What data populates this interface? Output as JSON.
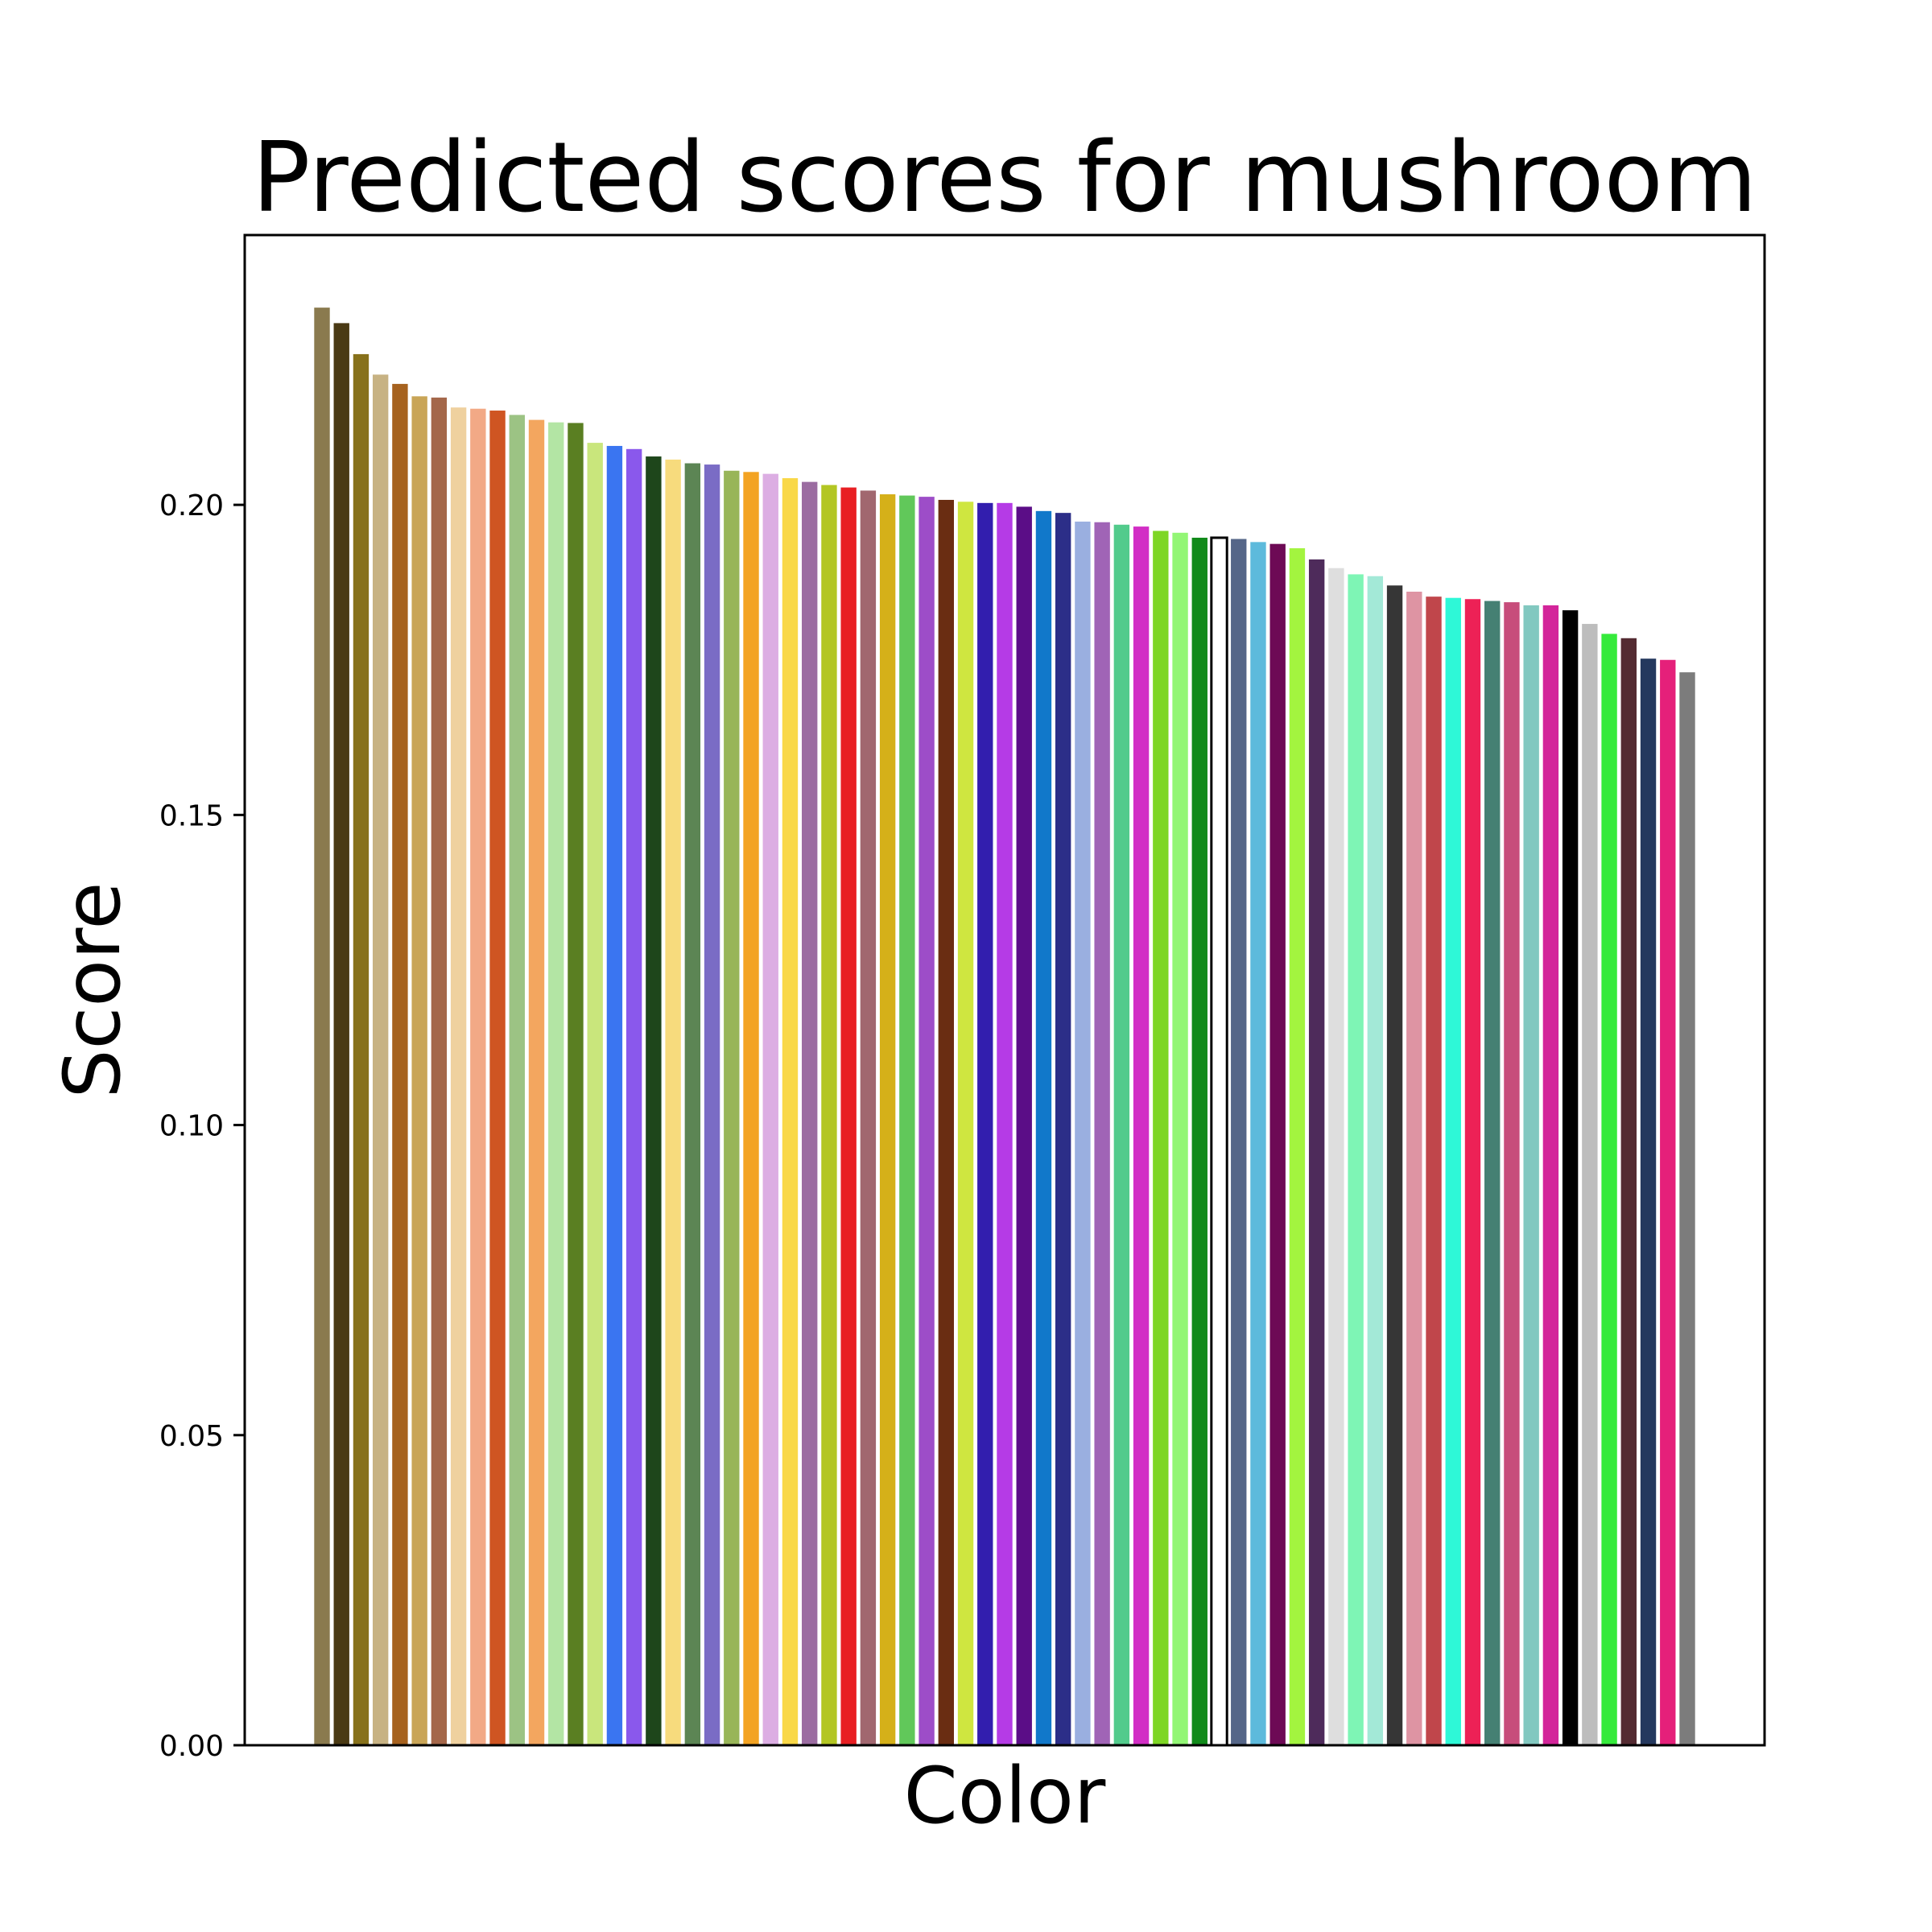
{
  "chart_data": {
    "type": "bar",
    "title": "Predicted scores for mushroom",
    "xlabel": "Color",
    "ylabel": "Score",
    "ylim": [
      0,
      0.2435
    ],
    "yticks": [
      0.0,
      0.05,
      0.1,
      0.15,
      0.2
    ],
    "ytick_labels": [
      "0.00",
      "0.05",
      "0.10",
      "0.15",
      "0.20"
    ],
    "grid": false,
    "legend": "none",
    "bars": [
      {
        "value": 0.2318,
        "color": "#8a7a4e"
      },
      {
        "value": 0.2293,
        "color": "#4a3a14"
      },
      {
        "value": 0.2243,
        "color": "#87711b"
      },
      {
        "value": 0.221,
        "color": "#c7b283"
      },
      {
        "value": 0.2195,
        "color": "#a6621f"
      },
      {
        "value": 0.2175,
        "color": "#c9a557"
      },
      {
        "value": 0.2173,
        "color": "#a4674a"
      },
      {
        "value": 0.2157,
        "color": "#efd19f"
      },
      {
        "value": 0.2155,
        "color": "#f2a986"
      },
      {
        "value": 0.2152,
        "color": "#cf5522"
      },
      {
        "value": 0.2145,
        "color": "#9cc384"
      },
      {
        "value": 0.2137,
        "color": "#f3a65f"
      },
      {
        "value": 0.2133,
        "color": "#b3e5a4"
      },
      {
        "value": 0.2132,
        "color": "#5a7f22"
      },
      {
        "value": 0.21,
        "color": "#c9e67c"
      },
      {
        "value": 0.2095,
        "color": "#3a75f1"
      },
      {
        "value": 0.209,
        "color": "#8a58ec"
      },
      {
        "value": 0.2078,
        "color": "#1e461b"
      },
      {
        "value": 0.2073,
        "color": "#f7db7d"
      },
      {
        "value": 0.2067,
        "color": "#5c8554"
      },
      {
        "value": 0.2065,
        "color": "#7a6cc5"
      },
      {
        "value": 0.2055,
        "color": "#98b558"
      },
      {
        "value": 0.2053,
        "color": "#f3a323"
      },
      {
        "value": 0.205,
        "color": "#dcaee3"
      },
      {
        "value": 0.2043,
        "color": "#f9d848"
      },
      {
        "value": 0.2037,
        "color": "#9b6ca1"
      },
      {
        "value": 0.2032,
        "color": "#b3c623"
      },
      {
        "value": 0.2028,
        "color": "#e81f23"
      },
      {
        "value": 0.2023,
        "color": "#a1676f"
      },
      {
        "value": 0.2017,
        "color": "#d5b019"
      },
      {
        "value": 0.2015,
        "color": "#61c85a"
      },
      {
        "value": 0.2013,
        "color": "#9d4dc8"
      },
      {
        "value": 0.2008,
        "color": "#6a2d12"
      },
      {
        "value": 0.2005,
        "color": "#cfe640"
      },
      {
        "value": 0.2003,
        "color": "#321eae"
      },
      {
        "value": 0.2003,
        "color": "#b53be6"
      },
      {
        "value": 0.1997,
        "color": "#5b0d87"
      },
      {
        "value": 0.199,
        "color": "#1178ca"
      },
      {
        "value": 0.1987,
        "color": "#2c2e88"
      },
      {
        "value": 0.1973,
        "color": "#9aafe0"
      },
      {
        "value": 0.1972,
        "color": "#a064b6"
      },
      {
        "value": 0.1968,
        "color": "#52cb8c"
      },
      {
        "value": 0.1965,
        "color": "#d22ec5"
      },
      {
        "value": 0.1958,
        "color": "#7ed625"
      },
      {
        "value": 0.1955,
        "color": "#93f675"
      },
      {
        "value": 0.1947,
        "color": "#118a1a"
      },
      {
        "value": 0.1947,
        "color": "#ffffff",
        "outline": "#000000"
      },
      {
        "value": 0.1945,
        "color": "#556688"
      },
      {
        "value": 0.194,
        "color": "#5dbadc"
      },
      {
        "value": 0.1937,
        "color": "#6d0a55"
      },
      {
        "value": 0.193,
        "color": "#a3f43f"
      },
      {
        "value": 0.1912,
        "color": "#4e2b5b"
      },
      {
        "value": 0.1898,
        "color": "#dedede"
      },
      {
        "value": 0.1888,
        "color": "#7ef5b5"
      },
      {
        "value": 0.1885,
        "color": "#a3e9d7"
      },
      {
        "value": 0.187,
        "color": "#363636"
      },
      {
        "value": 0.186,
        "color": "#de94a3"
      },
      {
        "value": 0.1852,
        "color": "#c0464b"
      },
      {
        "value": 0.185,
        "color": "#2ef8d7"
      },
      {
        "value": 0.1848,
        "color": "#ed2156"
      },
      {
        "value": 0.1845,
        "color": "#458073"
      },
      {
        "value": 0.1843,
        "color": "#c74d7b"
      },
      {
        "value": 0.1838,
        "color": "#82c8c0"
      },
      {
        "value": 0.1838,
        "color": "#d3259a"
      },
      {
        "value": 0.183,
        "color": "#000000"
      },
      {
        "value": 0.1808,
        "color": "#bdbdbd"
      },
      {
        "value": 0.1792,
        "color": "#35ea3b"
      },
      {
        "value": 0.1785,
        "color": "#542b32"
      },
      {
        "value": 0.1752,
        "color": "#24385e"
      },
      {
        "value": 0.175,
        "color": "#e5207a"
      },
      {
        "value": 0.173,
        "color": "#7c7c7c"
      }
    ]
  }
}
